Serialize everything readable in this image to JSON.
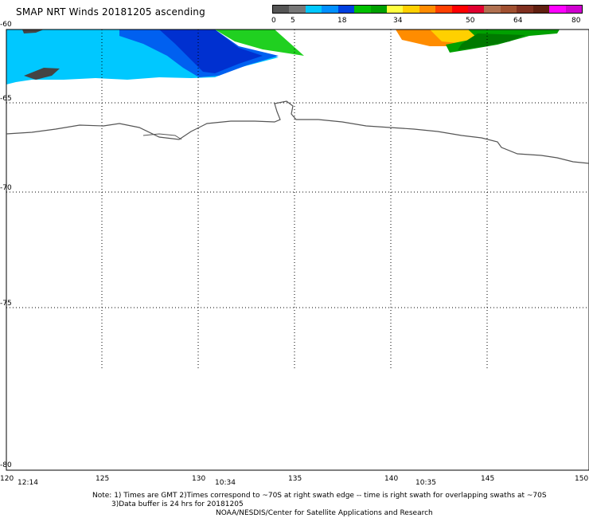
{
  "title": "SMAP NRT Winds 20181205 ascending",
  "colorbar": {
    "labels": [
      "0",
      "5",
      "18",
      "34",
      "50",
      "64",
      "80"
    ],
    "segments": [
      {
        "color": "#555555"
      },
      {
        "color": "#777777"
      },
      {
        "color": "#00c8ff"
      },
      {
        "color": "#0090ff"
      },
      {
        "color": "#0040e0"
      },
      {
        "color": "#00c000"
      },
      {
        "color": "#00a000"
      },
      {
        "color": "#ffff40"
      },
      {
        "color": "#ffd000"
      },
      {
        "color": "#ff8c00"
      },
      {
        "color": "#ff4000"
      },
      {
        "color": "#ff0000"
      },
      {
        "color": "#e00030"
      },
      {
        "color": "#b07050"
      },
      {
        "color": "#a05030"
      },
      {
        "color": "#803020"
      },
      {
        "color": "#602010"
      },
      {
        "color": "#ff00ff"
      },
      {
        "color": "#d000d0"
      }
    ]
  },
  "lat_labels": [
    "-60",
    "-65",
    "-70",
    "-75",
    "-80"
  ],
  "lon_labels": [
    "120",
    "125",
    "130",
    "135",
    "140",
    "145",
    "150"
  ],
  "time_labels": [
    "12:14",
    "10:34",
    "10:35"
  ],
  "notes": [
    "Note: 1) Times are GMT 2)Times correspond to ~70S at right swath edge -- time is right swath for overlapping swaths at ~70S",
    "3)Data buffer is 24 hrs for 20181205",
    "NOAA/NESDIS/Center for Satellite Applications and Research"
  ]
}
